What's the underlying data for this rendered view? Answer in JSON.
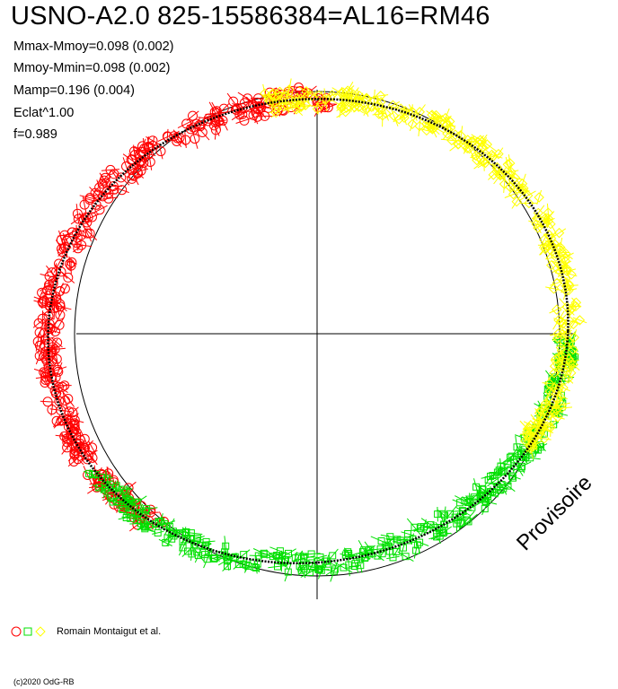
{
  "title": "USNO-A2.0 825-15586384=AL16=RM46",
  "stats": [
    "Mmax-Mmoy=0.098 (0.002)",
    "Mmoy-Mmin=0.098 (0.002)",
    "Mamp=0.196 (0.004)",
    "Eclat^1.00",
    "f=0.989"
  ],
  "watermark": "Provisoire",
  "legend": {
    "text": "Romain Montaigut et al.",
    "symbols": [
      "circle-icon",
      "square-icon",
      "diamond-icon"
    ]
  },
  "copyright": "(c)2020 OdG-RB",
  "colors": {
    "red": "#ff0000",
    "green": "#00e000",
    "yellow": "#ffff00",
    "axis": "#000000"
  },
  "chart_data": {
    "type": "scatter",
    "description_of_axes": "polar light-curve plot: angle = phase, radius = magnitude offset",
    "amplitude": 0.196,
    "mmax_mmoy": 0.098,
    "mmoy_mmin": 0.098,
    "eclat_exponent": 1.0,
    "f": 0.989,
    "series": [
      {
        "marker": "circle",
        "color": "red",
        "phase_range_deg": [
          85,
          235
        ]
      },
      {
        "marker": "square",
        "color": "green",
        "phase_range_deg": [
          215,
          360
        ]
      },
      {
        "marker": "diamond",
        "color": "yellow",
        "phase_range_deg": [
          -30,
          100
        ]
      }
    ],
    "reference_circle": true,
    "fit_curve": true
  }
}
